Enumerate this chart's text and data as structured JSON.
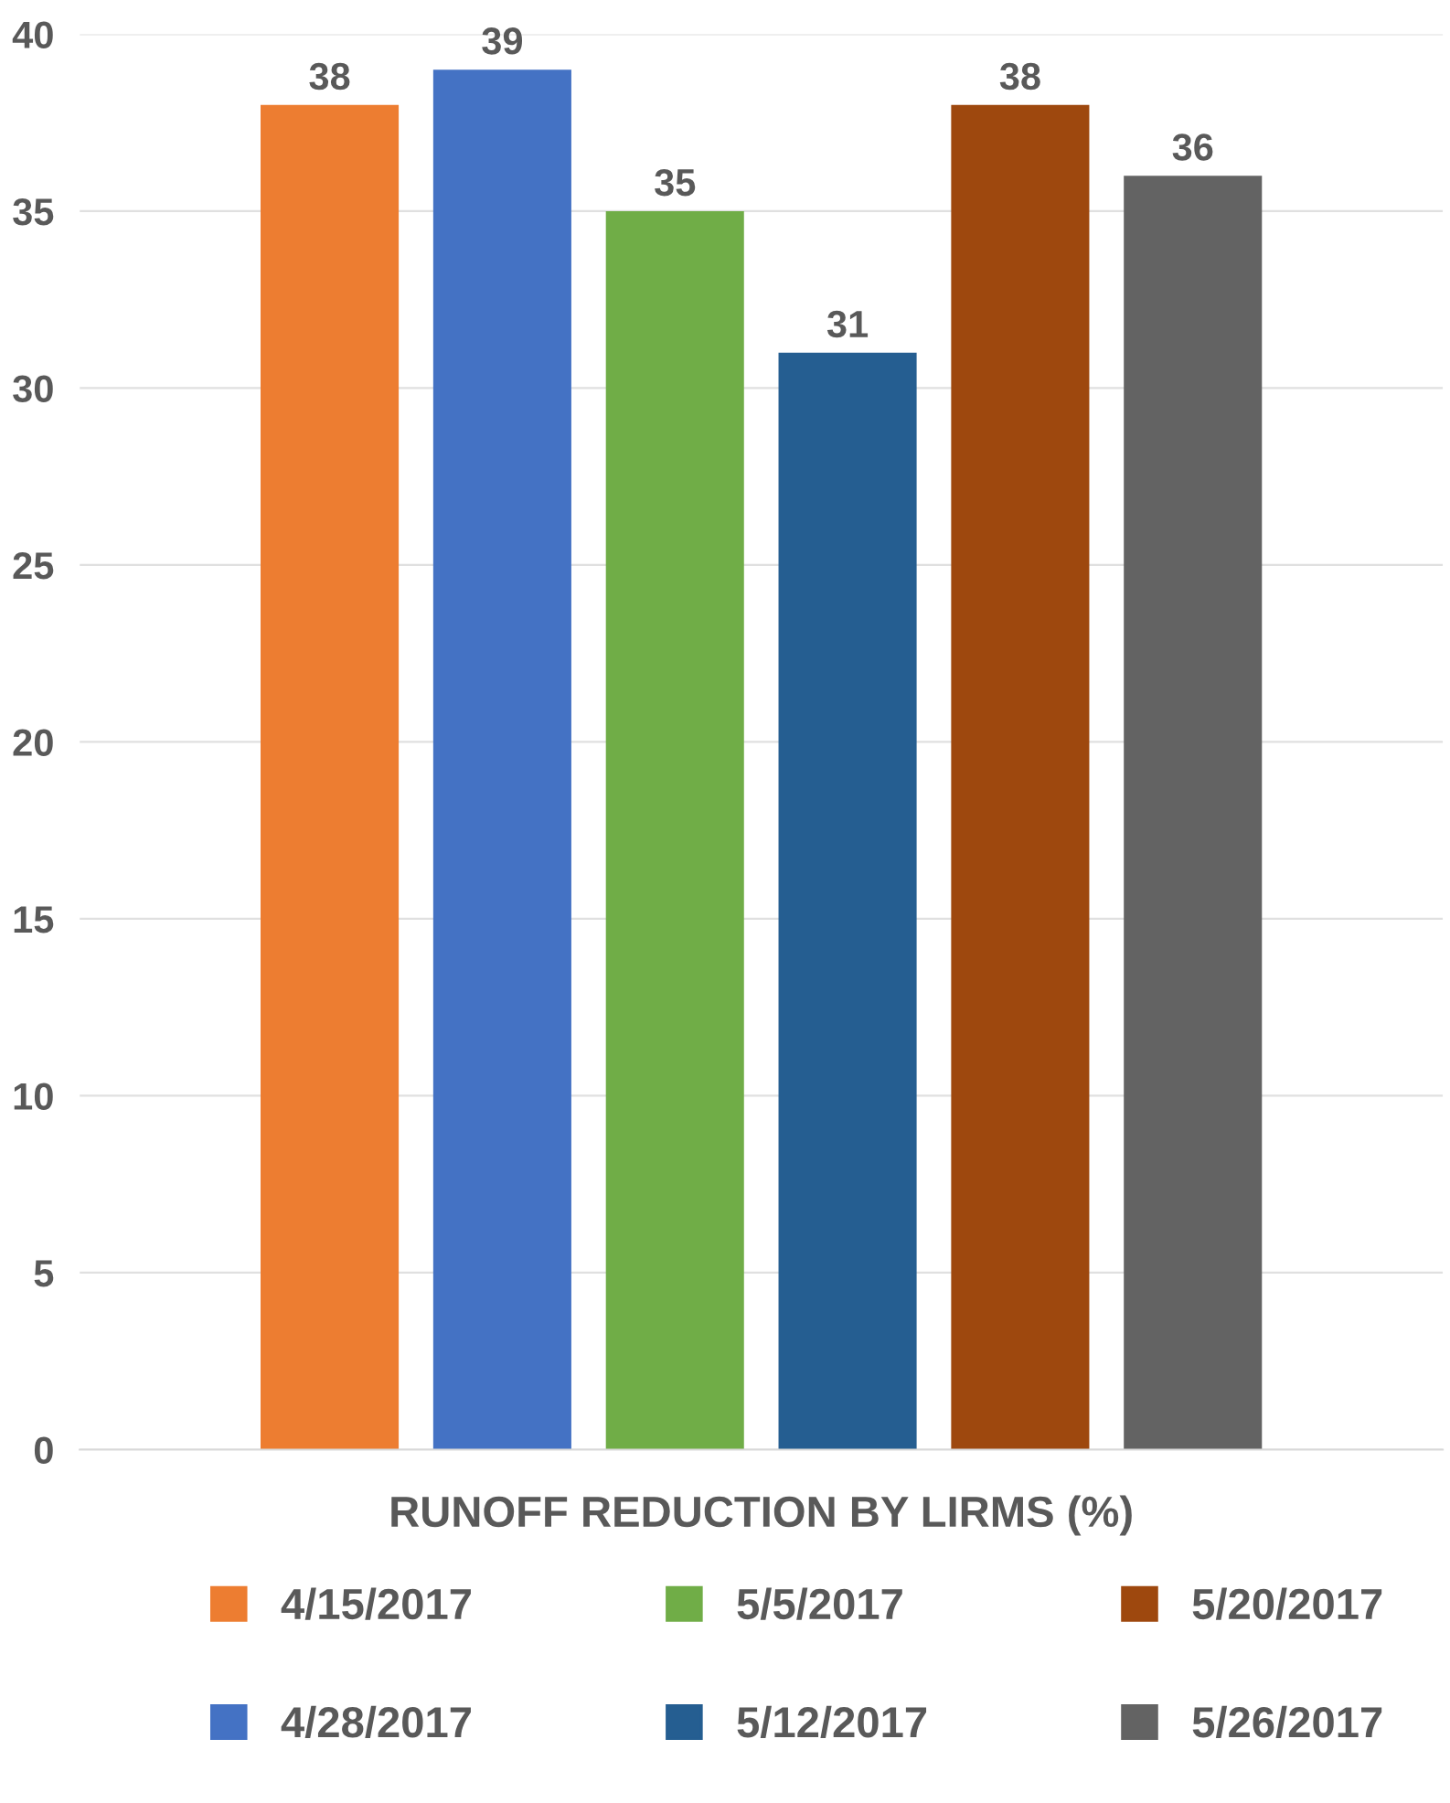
{
  "chart_data": {
    "type": "bar",
    "categories": [
      "RUNOFF REDUCTION BY LIRMS (%)"
    ],
    "series": [
      {
        "name": "4/15/2017",
        "color": "#ed7d31",
        "values": [
          38
        ]
      },
      {
        "name": "4/28/2017",
        "color": "#4472c4",
        "values": [
          39
        ]
      },
      {
        "name": "5/5/2017",
        "color": "#70ad47",
        "values": [
          35
        ]
      },
      {
        "name": "5/12/2017",
        "color": "#255e91",
        "values": [
          31
        ]
      },
      {
        "name": "5/20/2017",
        "color": "#9e480e",
        "values": [
          38
        ]
      },
      {
        "name": "5/26/2017",
        "color": "#636363",
        "values": [
          36
        ]
      }
    ],
    "ylim": [
      0,
      40
    ],
    "yticks": [
      0,
      5,
      10,
      15,
      20,
      25,
      30,
      35,
      40
    ],
    "grid": "y",
    "legend": "bottom",
    "data_labels": true
  }
}
